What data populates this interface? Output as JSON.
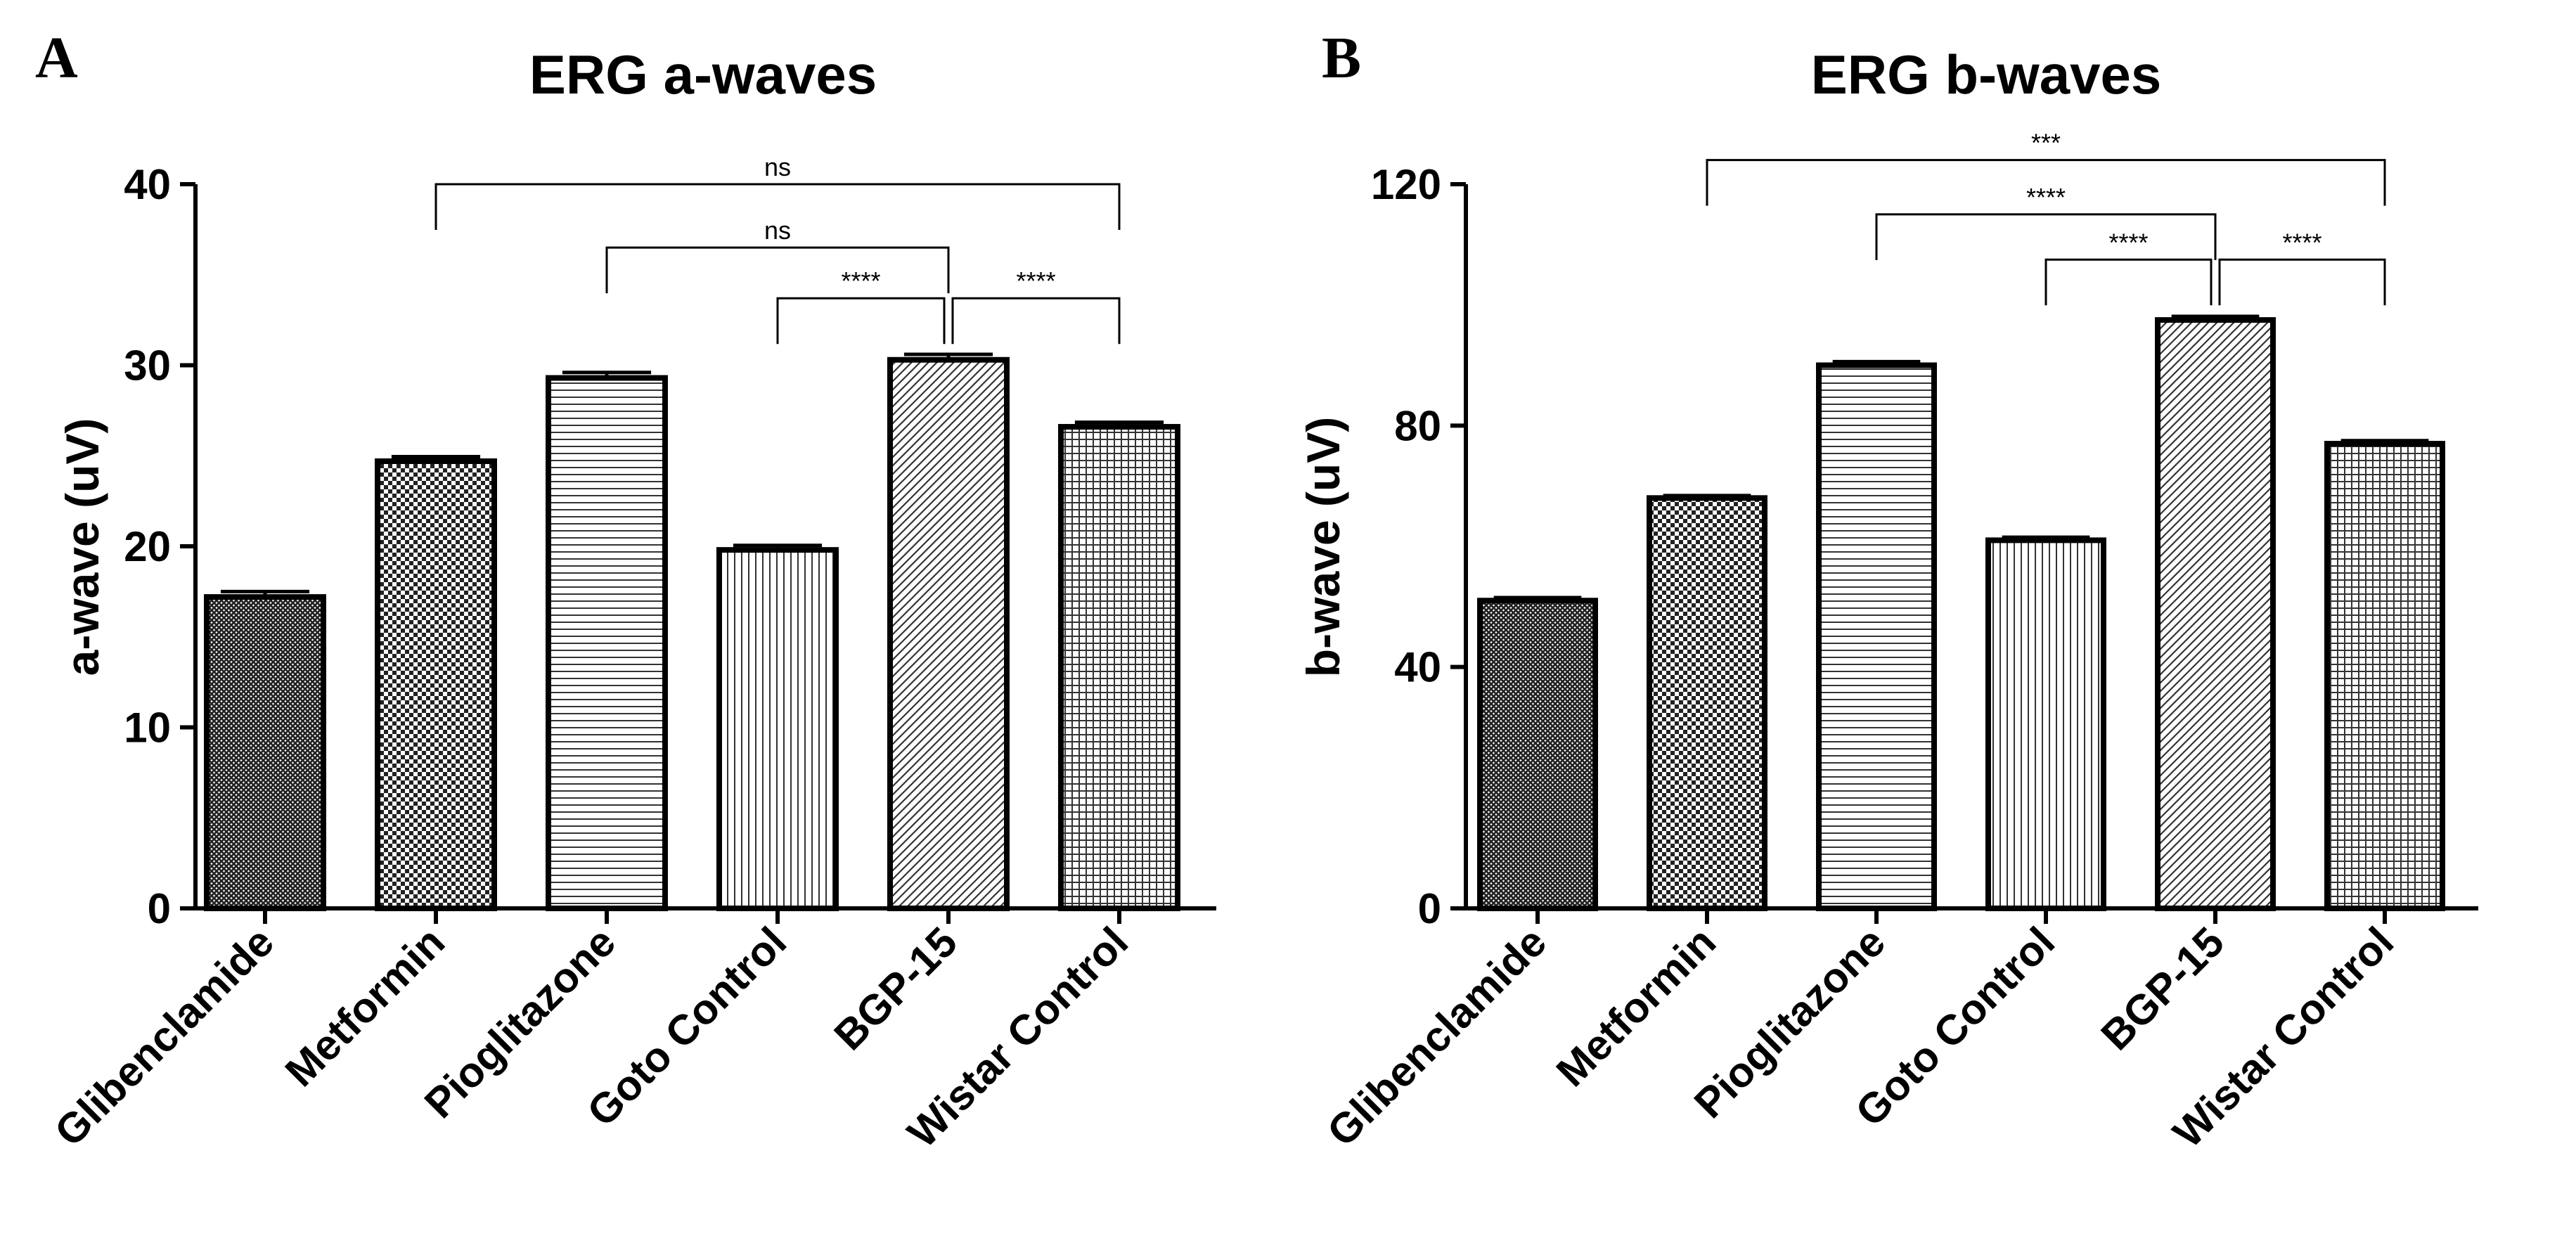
{
  "chart_data": [
    {
      "type": "bar",
      "panel": "A",
      "title": "ERG a-waves",
      "xlabel": "",
      "ylabel": "a-wave (uV)",
      "ylim": [
        0,
        40
      ],
      "yticks": [
        0,
        10,
        20,
        30,
        40
      ],
      "categories": [
        "Glibenclamide",
        "Metformin",
        "Pioglitazone",
        "Goto Control",
        "BGP-15",
        "Wistar Control"
      ],
      "values": [
        17.2,
        24.7,
        29.3,
        19.8,
        30.3,
        26.6
      ],
      "errors": [
        0.3,
        0.25,
        0.3,
        0.25,
        0.3,
        0.25
      ],
      "patterns": [
        "dense-crosshatch",
        "checker",
        "horizontal-lines",
        "vertical-lines",
        "diagonal-lines",
        "grid"
      ],
      "comparisons": [
        {
          "from": "Metformin",
          "to": "Wistar Control",
          "label": "ns",
          "level": 40
        },
        {
          "from": "Pioglitazone",
          "to": "BGP-15",
          "label": "ns",
          "level": 36.5
        },
        {
          "from": "Goto Control",
          "to": "BGP-15",
          "label": "****",
          "level": 33.7
        },
        {
          "from": "BGP-15",
          "to": "Wistar Control",
          "label": "****",
          "level": 33.7
        }
      ]
    },
    {
      "type": "bar",
      "panel": "B",
      "title": "ERG b-waves",
      "xlabel": "",
      "ylabel": "b-wave (uV)",
      "ylim": [
        0,
        120
      ],
      "yticks": [
        0,
        40,
        80,
        120
      ],
      "categories": [
        "Glibenclamide",
        "Metformin",
        "Pioglitazone",
        "Goto Control",
        "BGP-15",
        "Wistar Control"
      ],
      "values": [
        51,
        68,
        90,
        61,
        97.5,
        77
      ],
      "errors": [
        0.5,
        0.4,
        0.6,
        0.5,
        0.6,
        0.5
      ],
      "patterns": [
        "dense-crosshatch",
        "checker",
        "horizontal-lines",
        "vertical-lines",
        "diagonal-lines",
        "grid"
      ],
      "comparisons": [
        {
          "from": "Metformin",
          "to": "Wistar Control",
          "label": "***",
          "level": 124
        },
        {
          "from": "Pioglitazone",
          "to": "BGP-15",
          "label": "****",
          "level": 115
        },
        {
          "from": "Goto Control",
          "to": "BGP-15",
          "label": "****",
          "level": 107.5
        },
        {
          "from": "BGP-15",
          "to": "Wistar Control",
          "label": "****",
          "level": 107.5
        }
      ]
    }
  ]
}
